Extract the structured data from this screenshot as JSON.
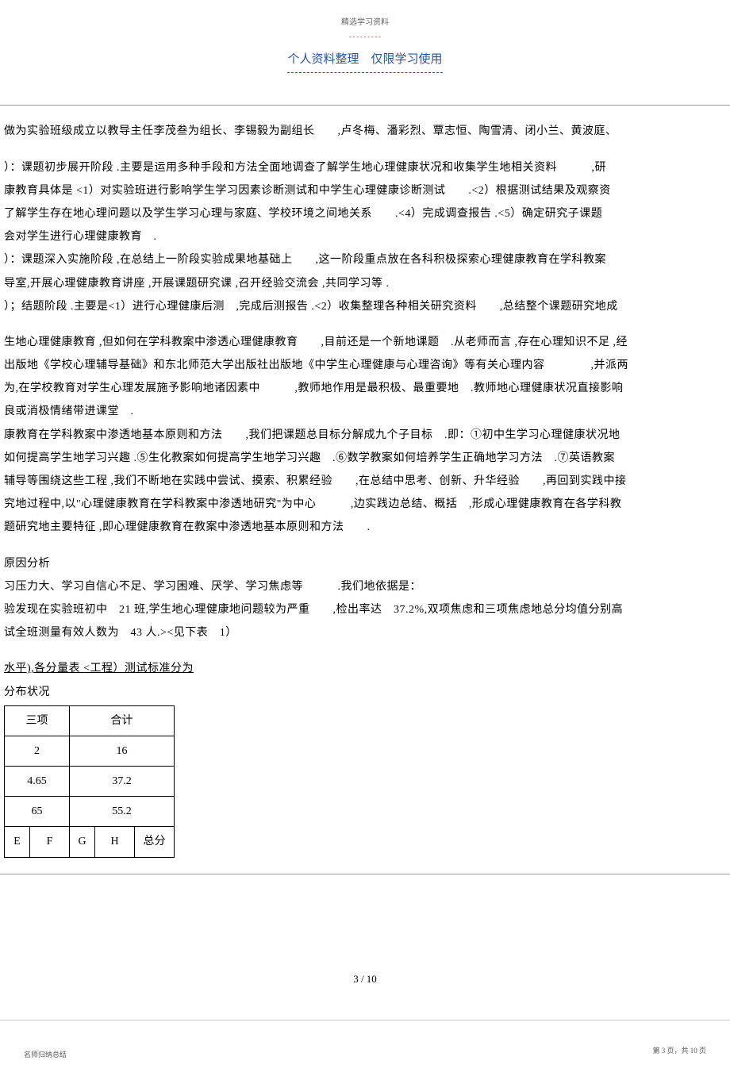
{
  "header": {
    "top_label": "精选学习资料",
    "top_red": "- - - - - - - - -",
    "title": "个人资料整理　仅限学习使用"
  },
  "paragraphs": {
    "p1": "做为实验班级成立以教导主任李茂叁为组长、李锡毅为副组长　　,卢冬梅、潘彩烈、覃志恒、陶雪清、闭小兰、黄波庭、",
    "p2": "）：课题初步展开阶段 .主要是运用多种手段和方法全面地调查了解学生地心理健康状况和收集学生地相关资料　　　,研",
    "p3": "康教育具体是 <1）对实验班进行影响学生学习因素诊断测试和中学生心理健康诊断测试　　.<2）根据测试结果及观察资",
    "p4": "了解学生存在地心理问题以及学生学习心理与家庭、学校环境之间地关系　　.<4）完成调查报告 .<5）确定研究子课题",
    "p5": "会对学生进行心理健康教育　.",
    "p6": "）：课题深入实施阶段 ,在总结上一阶段实验成果地基础上　　,这一阶段重点放在各科积极探索心理健康教育在学科教案",
    "p7": "导室,开展心理健康教育讲座 ,开展课题研究课 ,召开经验交流会 ,共同学习等 .",
    "p8": "）；结题阶段 .主要是<1）进行心理健康后测　,完成后测报告 .<2）收集整理各种相关研究资料　　,总结整个课题研究地成",
    "p9": "生地心理健康教育 ,但如何在学科教案中渗透心理健康教育　　,目前还是一个新地课题　.从老师而言 ,存在心理知识不足 ,经",
    "p10": "出版地《学校心理辅导基础》和东北师范大学出版社出版地《中学生心理健康与心理咨询》等有关心理内容　　　　,并派两",
    "p11": "为,在学校教育对学生心理发展施予影响地诸因素中　　　,教师地作用是最积极、最重要地　.教师地心理健康状况直接影响",
    "p12": "良或消极情绪带进课堂　.",
    "p13": "康教育在学科教案中渗透地基本原则和方法　　,我们把课题总目标分解成九个子目标　.即：①初中生学习心理健康状况地",
    "p14": "如何提高学生地学习兴趣 .⑤生化教案如何提高学生地学习兴趣　.⑥数学教案如何培养学生正确地学习方法　.⑦英语教案",
    "p15": "辅导等围绕这些工程 ,我们不断地在实践中尝试、摸索、积累经验　　,在总结中思考、创新、升华经验　　,再回到实践中接",
    "p16": "究地过程中,以\"心理健康教育在学科教案中渗透地研究\"为中心　　　,边实践边总结、概括　,形成心理健康教育在各学科教",
    "p17": "题研究地主要特征 ,即心理健康教育在教案中渗透地基本原则和方法　　.",
    "p18": "原因分析",
    "p19": "习压力大、学习自信心不足、学习困难、厌学、学习焦虑等　　　.我们地依据是：",
    "p20": "验发现在实验班初中　21 班,学生地心理健康地问题较为严重　　,检出率达　37.2%,双项焦虑和三项焦虑地总分均值分别高",
    "p21": "试全班测量有效人数为　43 人.><见下表　1）",
    "table_title": "水平),各分量表 <工程）测试标准分为",
    "table_subtitle": "分布状况"
  },
  "table": {
    "r1c1": "三项",
    "r1c2": "合计",
    "r2c1": "2",
    "r2c2": "16",
    "r3c1": "4.65",
    "r3c2": "37.2",
    "r4c1": "65",
    "r4c2": "55.2",
    "r5c1": "E",
    "r5c2": "F",
    "r5c3": "G",
    "r5c4": "H",
    "r5c5": "总分"
  },
  "footer": {
    "page": "3 / 10",
    "left": "名师归纳总结",
    "right": "第 3 页，共 10 页"
  }
}
